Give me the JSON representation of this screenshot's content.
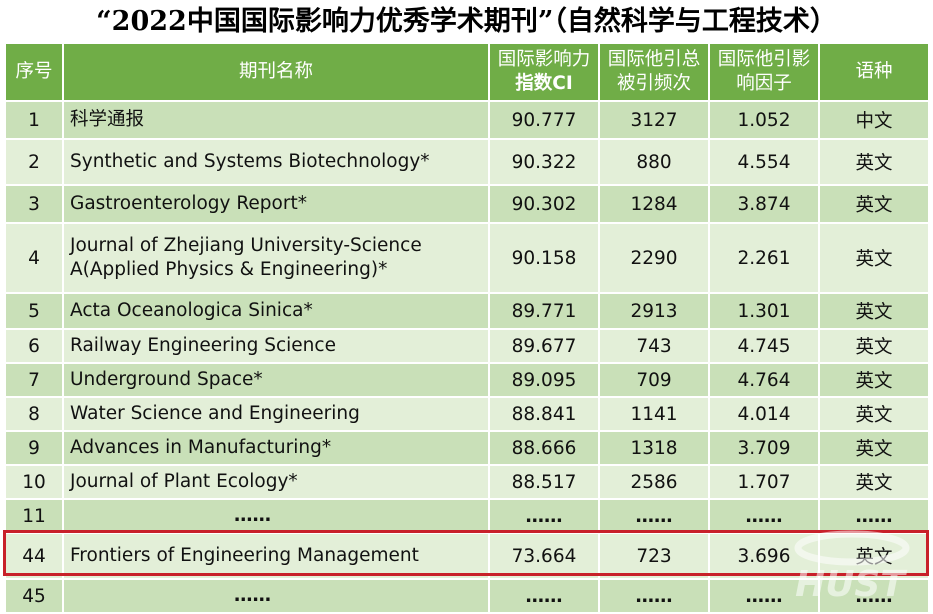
{
  "title": "“2022中国国际影响力优秀学术期刊”（自然科学与工程技术）",
  "columns": {
    "seq": "序号",
    "name": "期刊名称",
    "ci_line1": "国际影响力",
    "ci_line2": "指数CI",
    "cite_line1": "国际他引总",
    "cite_line2": "被引频次",
    "if_line1": "国际他引影",
    "if_line2": "响因子",
    "lang": "语种"
  },
  "rows": [
    {
      "seq": "1",
      "name": "科学通报",
      "ci": "90.777",
      "cites": "3127",
      "impact": "1.052",
      "lang": "中文"
    },
    {
      "seq": "2",
      "name": "Synthetic and Systems Biotechnology*",
      "ci": "90.322",
      "cites": "880",
      "impact": "4.554",
      "lang": "英文"
    },
    {
      "seq": "3",
      "name": "Gastroenterology Report*",
      "ci": "90.302",
      "cites": "1284",
      "impact": "3.874",
      "lang": "英文"
    },
    {
      "seq": "4",
      "name": "Journal of Zhejiang University-Science A(Applied Physics & Engineering)*",
      "ci": "90.158",
      "cites": "2290",
      "impact": "2.261",
      "lang": "英文"
    },
    {
      "seq": "5",
      "name": "Acta Oceanologica Sinica*",
      "ci": "89.771",
      "cites": "2913",
      "impact": "1.301",
      "lang": "英文"
    },
    {
      "seq": "6",
      "name": "Railway Engineering Science",
      "ci": "89.677",
      "cites": "743",
      "impact": "4.745",
      "lang": "英文"
    },
    {
      "seq": "7",
      "name": "Underground Space*",
      "ci": "89.095",
      "cites": "709",
      "impact": "4.764",
      "lang": "英文"
    },
    {
      "seq": "8",
      "name": "Water Science and Engineering",
      "ci": "88.841",
      "cites": "1141",
      "impact": "4.014",
      "lang": "英文"
    },
    {
      "seq": "9",
      "name": "Advances in Manufacturing*",
      "ci": "88.666",
      "cites": "1318",
      "impact": "3.709",
      "lang": "英文"
    },
    {
      "seq": "10",
      "name": "Journal of Plant Ecology*",
      "ci": "88.517",
      "cites": "2586",
      "impact": "1.707",
      "lang": "英文"
    },
    {
      "seq": "11",
      "name": "……",
      "ci": "……",
      "cites": "……",
      "impact": "……",
      "lang": "……"
    },
    {
      "seq": "44",
      "name": "Frontiers of Engineering Management",
      "ci": "73.664",
      "cites": "723",
      "impact": "3.696",
      "lang": "英文"
    },
    {
      "seq": "45",
      "name": "……",
      "ci": "……",
      "cites": "……",
      "impact": "……",
      "lang": "……"
    }
  ],
  "watermark_text": "HUST",
  "colors": {
    "header": "#70ad47",
    "row_dark": "#c9e0b8",
    "row_light": "#e3efd8",
    "highlight_border": "#c8202a"
  }
}
